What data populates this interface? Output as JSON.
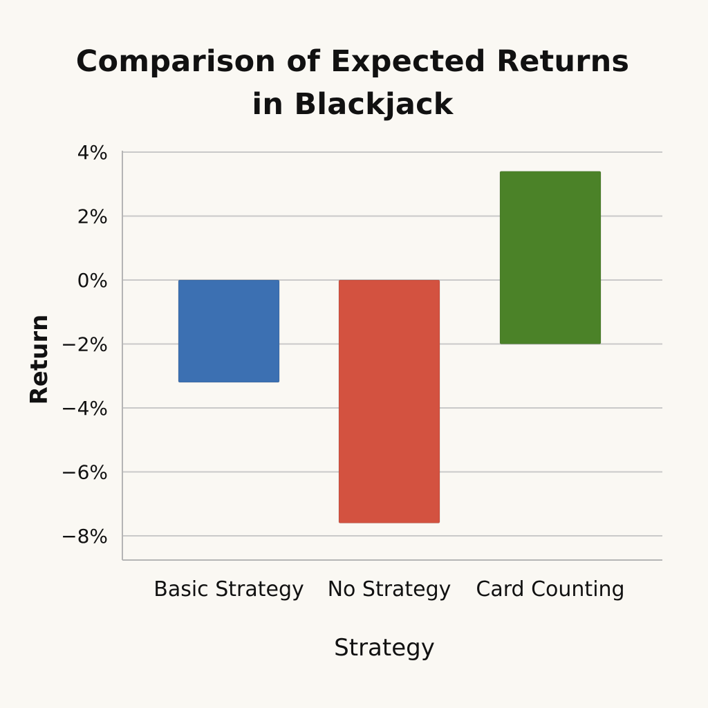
{
  "chart_data": {
    "type": "bar",
    "title": "Comparison of Expected Returns\nin Blackjack",
    "xlabel": "Strategy",
    "ylabel": "Return",
    "categories": [
      "Basic Strategy",
      "No Strategy",
      "Card Counting"
    ],
    "bars": [
      {
        "category": "Basic Strategy",
        "from": 0,
        "to": -3.2,
        "color": "#3c70b2"
      },
      {
        "category": "No Strategy",
        "from": 0,
        "to": -7.6,
        "color": "#d35240"
      },
      {
        "category": "Card Counting",
        "from": -2.0,
        "to": 3.4,
        "color": "#4b8228"
      }
    ],
    "ylim": [
      -8.8,
      4
    ],
    "yticks": [
      4,
      2,
      0,
      -2,
      -4,
      -6,
      -8
    ],
    "ytick_labels": [
      "4%",
      "2%",
      "0%",
      "−2%",
      "−4%",
      "−6%",
      "−8%"
    ],
    "grid": true,
    "legend": "none"
  }
}
